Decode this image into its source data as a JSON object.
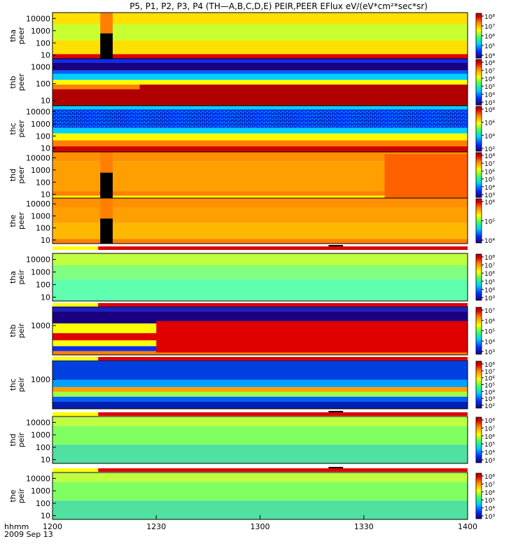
{
  "chart_data": {
    "type": "heatmap",
    "title": "P5, P1, P2, P3, P4 (TH—A,B,C,D,E) PEIR,PEER EFlux eV/(eV*cm²*sec*sr)",
    "time_axis": {
      "label": "hhmm",
      "date": "2009 Sep 13",
      "ticks": [
        "1200",
        "1230",
        "1300",
        "1330",
        "1400"
      ],
      "range": [
        "12:00",
        "14:00"
      ]
    },
    "y_scale": "log",
    "panels": [
      {
        "probe": "tha",
        "species": "peer",
        "ylabel": [
          "tha",
          "peer"
        ],
        "yticks": [
          "10000",
          "1000",
          "100",
          "10"
        ],
        "ylim": [
          5,
          30000
        ],
        "cbar_ticks": [
          "10⁸",
          "10⁷",
          "10⁶",
          "10⁵",
          "10⁴"
        ],
        "gap": [
          12.23,
          12.29
        ]
      },
      {
        "probe": "thb",
        "species": "peer",
        "ylabel": [
          "thb",
          "peer"
        ],
        "yticks": [
          "1000",
          "100",
          "10"
        ],
        "ylim": [
          5,
          3000
        ],
        "cbar_ticks": [
          "10⁸",
          "10⁷",
          "10⁶",
          "10⁵",
          "10⁴",
          "10³"
        ]
      },
      {
        "probe": "thc",
        "species": "peer",
        "ylabel": [
          "thc",
          "peer"
        ],
        "yticks": [
          "10000",
          "1000",
          "100",
          "10"
        ],
        "ylim": [
          5,
          30000
        ],
        "cbar_ticks": [
          "10⁸",
          "10⁶",
          "10⁴",
          "10²"
        ]
      },
      {
        "probe": "thd",
        "species": "peer",
        "ylabel": [
          "thd",
          "peer"
        ],
        "yticks": [
          "10000",
          "1000",
          "100",
          "10"
        ],
        "ylim": [
          5,
          30000
        ],
        "cbar_ticks": [
          "10⁸",
          "10⁷",
          "10⁶",
          "10⁵",
          "10⁴",
          "10³"
        ],
        "gap": [
          12.23,
          12.29
        ]
      },
      {
        "probe": "the",
        "species": "peer",
        "ylabel": [
          "the",
          "peer"
        ],
        "yticks": [
          "10000",
          "1000",
          "100",
          "10"
        ],
        "ylim": [
          5,
          30000
        ],
        "cbar_ticks": [
          "10⁶",
          "10⁵",
          "10⁴"
        ],
        "gap": [
          12.23,
          12.29
        ]
      },
      {
        "probe": "tha",
        "species": "peir",
        "ylabel": [
          "tha",
          "peir"
        ],
        "yticks": [
          "10000",
          "1000",
          "100",
          "10"
        ],
        "ylim": [
          5,
          30000
        ],
        "cbar_ticks": [
          "10⁸",
          "10⁷",
          "10⁶",
          "10⁵",
          "10⁴",
          "10³"
        ]
      },
      {
        "probe": "thb",
        "species": "peir",
        "ylabel": [
          "thb",
          "peir"
        ],
        "yticks": [
          "1000"
        ],
        "ylim": [
          5,
          30000
        ],
        "cbar_ticks": [
          "10⁷",
          "10⁶",
          "10⁵",
          "10⁴",
          "10³"
        ]
      },
      {
        "probe": "thc",
        "species": "peir",
        "ylabel": [
          "thc",
          "peir"
        ],
        "yticks": [
          "1000"
        ],
        "ylim": [
          5,
          30000
        ],
        "cbar_ticks": [
          "10⁸",
          "10⁷",
          "10⁶",
          "10⁵",
          "10⁴",
          "10³",
          "10²"
        ]
      },
      {
        "probe": "thd",
        "species": "peir",
        "ylabel": [
          "thd",
          "peir"
        ],
        "yticks": [
          "10000",
          "1000",
          "100",
          "10"
        ],
        "ylim": [
          5,
          30000
        ],
        "cbar_ticks": [
          "10⁸",
          "10⁷",
          "10⁶",
          "10⁵",
          "10⁴",
          "10³"
        ]
      },
      {
        "probe": "the",
        "species": "peir",
        "ylabel": [
          "the",
          "peir"
        ],
        "yticks": [
          "10000",
          "1000",
          "100",
          "10"
        ],
        "ylim": [
          5,
          30000
        ],
        "cbar_ticks": [
          "10⁸",
          "10⁷",
          "10⁶",
          "10⁵",
          "10⁴",
          "10³"
        ]
      }
    ],
    "mode_bars": [
      {
        "after_panel": 4,
        "switch_time": 12.22,
        "black_segment": [
          13.33,
          13.4
        ]
      },
      {
        "after_panel": 5,
        "switch_time": 12.22,
        "black_segment": []
      },
      {
        "after_panel": 6,
        "switch_time": 12.22,
        "black_segment": []
      },
      {
        "after_panel": 7,
        "switch_time": 12.22,
        "black_segment": [
          13.33,
          13.4
        ]
      },
      {
        "after_panel": 8,
        "switch_time": 12.22,
        "black_segment": [
          13.33,
          13.4
        ]
      }
    ],
    "colors": {
      "mode_before": "#ffff00",
      "mode_after": "#dd0000",
      "colormap": [
        "#1a0080",
        "#0030ff",
        "#00d0ff",
        "#40ff60",
        "#ffff00",
        "#ff8000",
        "#dd0000",
        "#a00000"
      ]
    }
  }
}
